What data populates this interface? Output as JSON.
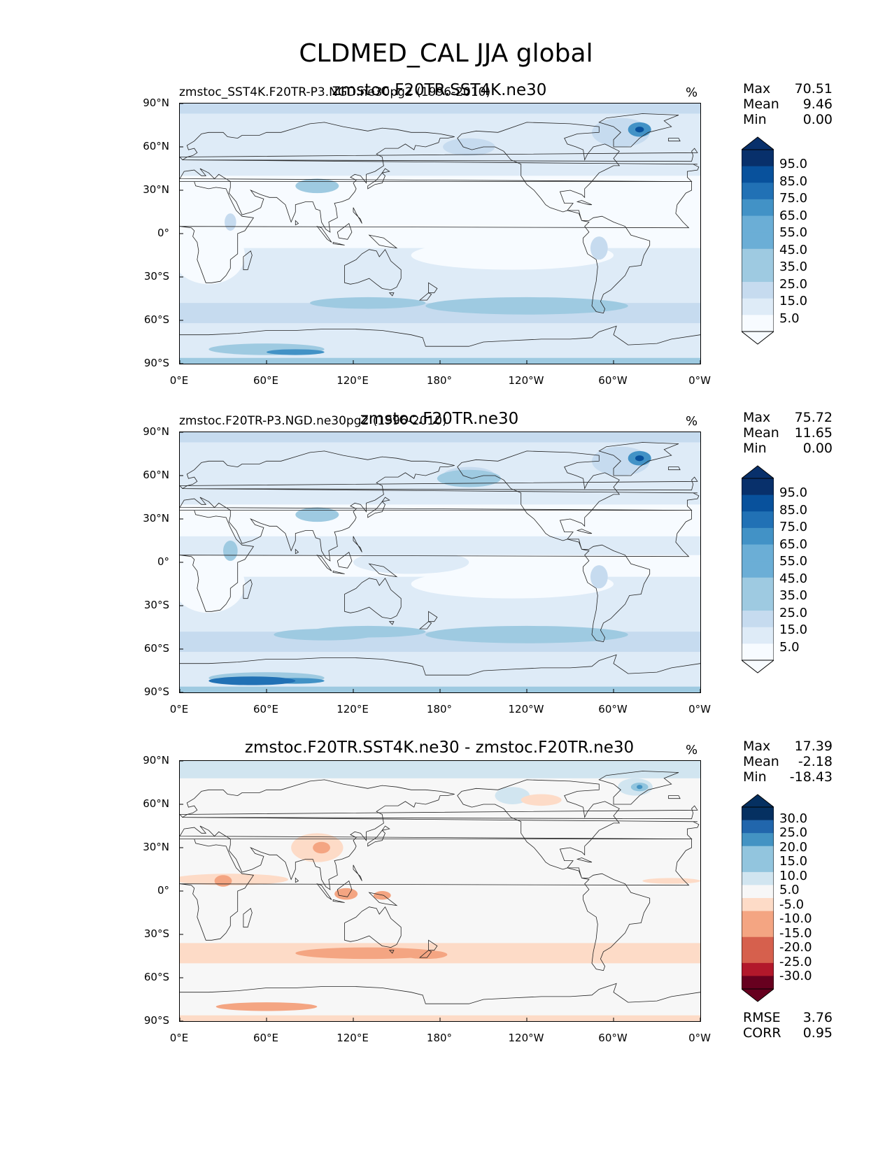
{
  "title": "CLDMED_CAL JJA global",
  "axes": {
    "yticks": [
      "90°N",
      "60°N",
      "30°N",
      "0°",
      "30°S",
      "60°S",
      "90°S"
    ],
    "xticks": [
      "0°E",
      "60°E",
      "120°E",
      "180°",
      "120°W",
      "60°W",
      "0°W"
    ]
  },
  "colors": {
    "blues": [
      "#f7fbff",
      "#deebf7",
      "#c6dbef",
      "#9ecae1",
      "#6baed6",
      "#4292c6",
      "#2171b5",
      "#08519c",
      "#08306b"
    ],
    "diff": [
      "#67001f",
      "#b2182b",
      "#d6604d",
      "#f4a582",
      "#fddbc7",
      "#f7f7f7",
      "#d1e5f0",
      "#92c5de",
      "#4393c3",
      "#2166ac",
      "#053061"
    ],
    "coast": "#222222"
  },
  "panels": [
    {
      "left_title": "zmstoc_SST4K.F20TR-P3.NGD.ne30pg2 (1996-2010)",
      "center_title": "zmstoc.F20TR.SST4K.ne30",
      "units": "%",
      "stats": [
        {
          "label": "Max",
          "value": "70.51"
        },
        {
          "label": "Mean",
          "value": "9.46"
        },
        {
          "label": "Min",
          "value": "0.00"
        }
      ],
      "colorbar_labels": [
        "95.0",
        "85.0",
        "75.0",
        "65.0",
        "55.0",
        "45.0",
        "35.0",
        "25.0",
        "15.0",
        "5.0"
      ]
    },
    {
      "left_title": "zmstoc.F20TR-P3.NGD.ne30pg2 (1996-2010)",
      "center_title": "zmstoc.F20TR.ne30",
      "units": "%",
      "stats": [
        {
          "label": "Max",
          "value": "75.72"
        },
        {
          "label": "Mean",
          "value": "11.65"
        },
        {
          "label": "Min",
          "value": "0.00"
        }
      ],
      "colorbar_labels": [
        "95.0",
        "85.0",
        "75.0",
        "65.0",
        "55.0",
        "45.0",
        "35.0",
        "25.0",
        "15.0",
        "5.0"
      ]
    },
    {
      "left_title": "",
      "center_title": "zmstoc.F20TR.SST4K.ne30 - zmstoc.F20TR.ne30",
      "units": "%",
      "stats": [
        {
          "label": "Max",
          "value": "17.39"
        },
        {
          "label": "Mean",
          "value": "-2.18"
        },
        {
          "label": "Min",
          "value": "-18.43"
        }
      ],
      "colorbar_labels": [
        "30.0",
        "25.0",
        "20.0",
        "15.0",
        "10.0",
        "5.0",
        "-5.0",
        "-10.0",
        "-15.0",
        "-20.0",
        "-25.0",
        "-30.0"
      ],
      "extra_stats": [
        {
          "label": "RMSE",
          "value": "3.76"
        },
        {
          "label": "CORR",
          "value": "0.95"
        }
      ]
    }
  ],
  "chart_data": [
    {
      "type": "heatmap",
      "title": "zmstoc.F20TR.SST4K.ne30",
      "subtitle": "zmstoc_SST4K.F20TR-P3.NGD.ne30pg2 (1996-2010)",
      "units": "%",
      "xlim": [
        0,
        360
      ],
      "ylim": [
        -90,
        90
      ],
      "max": 70.51,
      "mean": 9.46,
      "min": 0.0,
      "levels": [
        5,
        15,
        25,
        35,
        45,
        55,
        65,
        75,
        85,
        95
      ]
    },
    {
      "type": "heatmap",
      "title": "zmstoc.F20TR.ne30",
      "subtitle": "zmstoc.F20TR-P3.NGD.ne30pg2 (1996-2010)",
      "units": "%",
      "xlim": [
        0,
        360
      ],
      "ylim": [
        -90,
        90
      ],
      "max": 75.72,
      "mean": 11.65,
      "min": 0.0,
      "levels": [
        5,
        15,
        25,
        35,
        45,
        55,
        65,
        75,
        85,
        95
      ]
    },
    {
      "type": "heatmap",
      "title": "zmstoc.F20TR.SST4K.ne30 - zmstoc.F20TR.ne30",
      "units": "%",
      "xlim": [
        0,
        360
      ],
      "ylim": [
        -90,
        90
      ],
      "max": 17.39,
      "mean": -2.18,
      "min": -18.43,
      "rmse": 3.76,
      "corr": 0.95,
      "levels": [
        -30,
        -25,
        -20,
        -15,
        -10,
        -5,
        5,
        10,
        15,
        20,
        25,
        30
      ]
    }
  ]
}
